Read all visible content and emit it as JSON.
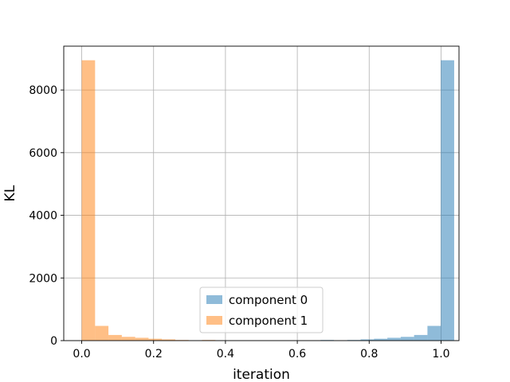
{
  "chart_data": {
    "type": "bar",
    "title": "",
    "xlabel": "iteration",
    "ylabel": "KL",
    "xlim": [
      -0.05,
      1.05
    ],
    "ylim": [
      0,
      9400
    ],
    "xticks": [
      0.0,
      0.2,
      0.4,
      0.6,
      0.8,
      1.0
    ],
    "xtick_labels": [
      "0.0",
      "0.2",
      "0.4",
      "0.6",
      "0.8",
      "1.0"
    ],
    "yticks": [
      0,
      2000,
      4000,
      6000,
      8000
    ],
    "ytick_labels": [
      "0",
      "2000",
      "4000",
      "6000",
      "8000"
    ],
    "grid": true,
    "legend_position": "lower-center",
    "bin_width": 0.0372,
    "series": [
      {
        "name": "component 0",
        "color": "#1f77b4",
        "bins": [
          {
            "x": 0.6646,
            "value": 20
          },
          {
            "x": 0.739,
            "value": 20
          },
          {
            "x": 0.7762,
            "value": 40
          },
          {
            "x": 0.8134,
            "value": 60
          },
          {
            "x": 0.8506,
            "value": 90
          },
          {
            "x": 0.8878,
            "value": 120
          },
          {
            "x": 0.925,
            "value": 180
          },
          {
            "x": 0.9622,
            "value": 470
          },
          {
            "x": 0.9994,
            "value": 8950
          }
        ]
      },
      {
        "name": "component 1",
        "color": "#ff7f0e",
        "bins": [
          {
            "x": 0.0,
            "value": 8950
          },
          {
            "x": 0.0372,
            "value": 470
          },
          {
            "x": 0.0744,
            "value": 180
          },
          {
            "x": 0.1116,
            "value": 120
          },
          {
            "x": 0.1488,
            "value": 90
          },
          {
            "x": 0.186,
            "value": 60
          },
          {
            "x": 0.2232,
            "value": 40
          },
          {
            "x": 0.2604,
            "value": 20
          },
          {
            "x": 0.3348,
            "value": 20
          }
        ]
      }
    ]
  }
}
